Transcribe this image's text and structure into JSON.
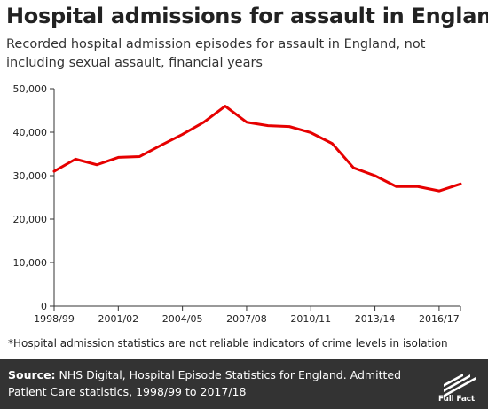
{
  "chart_data": {
    "type": "line",
    "title": "Hospital admissions for assault in England",
    "subtitle": "Recorded hospital admission episodes for assault in England, not including sexual assault, financial years",
    "xlabel": "",
    "ylabel": "",
    "categories": [
      "1998/99",
      "1999/00",
      "2000/01",
      "2001/02",
      "2002/03",
      "2003/04",
      "2004/05",
      "2005/06",
      "2006/07",
      "2007/08",
      "2008/09",
      "2009/10",
      "2010/11",
      "2011/12",
      "2012/13",
      "2013/14",
      "2014/15",
      "2015/16",
      "2016/17",
      "2017/18"
    ],
    "x_tick_labels": [
      "1998/99",
      "2001/02",
      "2004/05",
      "2007/08",
      "2010/11",
      "2013/14",
      "2016/17"
    ],
    "y_ticks": [
      "0",
      "10,000",
      "20,000",
      "30,000",
      "40,000",
      "50,000"
    ],
    "ylim": [
      0,
      50000
    ],
    "series": [
      {
        "values": [
          31000,
          33800,
          32500,
          34200,
          34400,
          37000,
          39500,
          42300,
          46000,
          42300,
          41500,
          41300,
          39900,
          37400,
          31800,
          30000,
          27500,
          27500,
          26500,
          28100
        ],
        "color": "#e60000"
      }
    ],
    "grid": false
  },
  "footnote": "*Hospital admission statistics are not reliable indicators of crime levels in isolation",
  "footer": {
    "source_label": "Source:",
    "source_text": " NHS Digital, Hospital Episode Statistics for England. Admitted Patient Care statistics, 1998/99 to 2017/18",
    "logo_text": "Full Fact"
  }
}
